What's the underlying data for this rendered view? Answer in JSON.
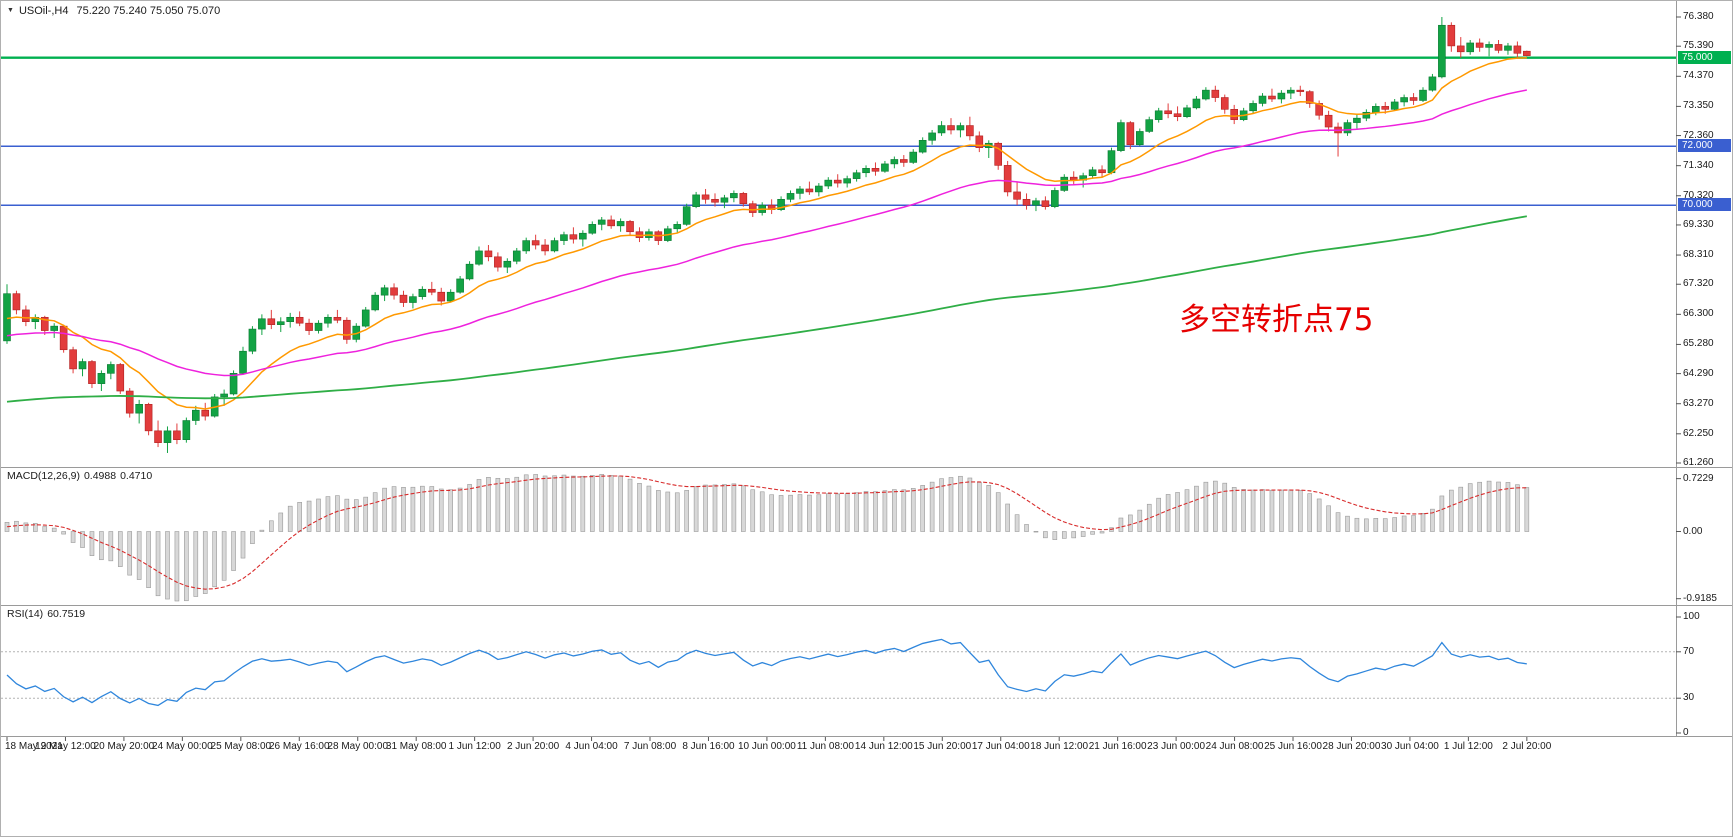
{
  "window": {
    "symbol": "USOil-,H4",
    "ohlc": "75.220 75.240 75.050 75.070"
  },
  "annotation": {
    "text": "多空转折点75",
    "color": "#e60000"
  },
  "colors": {
    "up": "#12a344",
    "up_stroke": "#0b7a32",
    "down": "#e23c3c",
    "down_stroke": "#b02020",
    "ma_fast": "#ff9900",
    "ma_mid": "#ee22dd",
    "ma_slow": "#2fae46",
    "level_green": "#00b050",
    "level_blue": "#3a5fd0",
    "macd_hist_fill": "#d8d8d8",
    "macd_hist_stroke": "#9a9a9a",
    "macd_signal": "#d82c2c",
    "rsi_line": "#2f86dc",
    "rsi_level": "#b4b4b4",
    "separator": "#9a9a9a",
    "axis_text": "#1a1a1a"
  },
  "price_axis": {
    "ticks": [
      "76.380",
      "75.390",
      "74.370",
      "73.350",
      "72.360",
      "71.340",
      "70.320",
      "69.330",
      "68.310",
      "67.320",
      "66.300",
      "65.280",
      "64.290",
      "63.270",
      "62.250",
      "61.260"
    ],
    "level_labels": [
      {
        "text": "75.000",
        "value": 75.0,
        "bg": "#00b050"
      },
      {
        "text": "72.000",
        "value": 72.0,
        "bg": "#3a5fd0"
      },
      {
        "text": "70.000",
        "value": 70.0,
        "bg": "#3a5fd0"
      }
    ]
  },
  "levels": [
    {
      "value": 75.0,
      "color": "#00b050",
      "width": 2.4
    },
    {
      "value": 72.0,
      "color": "#3a5fd0",
      "width": 1.5
    },
    {
      "value": 70.0,
      "color": "#3a5fd0",
      "width": 1.5
    }
  ],
  "time_axis": {
    "labels": [
      "18 May 2021",
      "19 May 12:00",
      "20 May 20:00",
      "24 May 00:00",
      "25 May 08:00",
      "26 May 16:00",
      "28 May 00:00",
      "31 May 08:00",
      "1 Jun 12:00",
      "2 Jun 20:00",
      "4 Jun 04:00",
      "7 Jun 08:00",
      "8 Jun 16:00",
      "10 Jun 00:00",
      "11 Jun 08:00",
      "14 Jun 12:00",
      "15 Jun 20:00",
      "17 Jun 04:00",
      "18 Jun 12:00",
      "21 Jun 16:00",
      "23 Jun 00:00",
      "24 Jun 08:00",
      "25 Jun 16:00",
      "28 Jun 20:00",
      "30 Jun 04:00",
      "1 Jul 12:00",
      "2 Jul 20:00"
    ]
  },
  "macd": {
    "label": "MACD(12,26,9)",
    "value_main": "0.4988",
    "value_signal": "0.4710",
    "axis": [
      "0.7229",
      "0.00",
      "-0.9185"
    ]
  },
  "rsi": {
    "label": "RSI(14)",
    "value": "60.7519",
    "axis": [
      "100",
      "70",
      "30",
      "0"
    ],
    "levels": [
      70,
      30
    ]
  },
  "chart_data": {
    "type": "candlestick",
    "symbol": "USOil-",
    "timeframe": "H4",
    "title": "USOil-,H4 75.220 75.240 75.050 75.070",
    "current_bar": {
      "open": 75.22,
      "high": 75.24,
      "low": 75.05,
      "close": 75.07
    },
    "price_axis_range": [
      61.26,
      76.38
    ],
    "horizontal_levels": [
      75.0,
      72.0,
      70.0
    ],
    "indicators": [
      {
        "name": "MACD",
        "params": [
          12,
          26,
          9
        ],
        "current_main": 0.4988,
        "current_signal": 0.471,
        "axis_range": [
          -0.9185,
          0.7229
        ]
      },
      {
        "name": "RSI",
        "params": [
          14
        ],
        "current": 60.7519,
        "axis_range": [
          0,
          100
        ],
        "levels": [
          30,
          70
        ]
      }
    ],
    "candles": [
      [
        65.4,
        67.32,
        65.3,
        67.0
      ],
      [
        67.0,
        67.1,
        66.3,
        66.45
      ],
      [
        66.45,
        66.6,
        65.9,
        66.05
      ],
      [
        66.05,
        66.3,
        65.8,
        66.2
      ],
      [
        66.2,
        66.25,
        65.6,
        65.75
      ],
      [
        65.75,
        66.0,
        65.5,
        65.9
      ],
      [
        65.9,
        65.95,
        65.0,
        65.1
      ],
      [
        65.1,
        65.2,
        64.3,
        64.45
      ],
      [
        64.45,
        64.8,
        64.2,
        64.7
      ],
      [
        64.7,
        64.75,
        63.8,
        63.95
      ],
      [
        63.95,
        64.4,
        63.7,
        64.3
      ],
      [
        64.3,
        64.7,
        64.1,
        64.6
      ],
      [
        64.6,
        64.65,
        63.6,
        63.7
      ],
      [
        63.7,
        63.8,
        62.8,
        62.95
      ],
      [
        62.95,
        63.4,
        62.6,
        63.25
      ],
      [
        63.25,
        63.3,
        62.2,
        62.35
      ],
      [
        62.35,
        62.7,
        61.8,
        61.95
      ],
      [
        61.95,
        62.5,
        61.6,
        62.35
      ],
      [
        62.35,
        62.6,
        61.9,
        62.05
      ],
      [
        62.05,
        62.8,
        61.95,
        62.7
      ],
      [
        62.7,
        63.2,
        62.55,
        63.05
      ],
      [
        63.05,
        63.3,
        62.7,
        62.85
      ],
      [
        62.85,
        63.6,
        62.8,
        63.5
      ],
      [
        63.5,
        63.75,
        63.2,
        63.6
      ],
      [
        63.6,
        64.4,
        63.55,
        64.3
      ],
      [
        64.3,
        65.2,
        64.25,
        65.05
      ],
      [
        65.05,
        65.9,
        64.95,
        65.8
      ],
      [
        65.8,
        66.3,
        65.6,
        66.15
      ],
      [
        66.15,
        66.45,
        65.8,
        65.95
      ],
      [
        65.95,
        66.2,
        65.7,
        66.05
      ],
      [
        66.05,
        66.35,
        65.85,
        66.2
      ],
      [
        66.2,
        66.4,
        65.9,
        66.0
      ],
      [
        66.0,
        66.15,
        65.6,
        65.75
      ],
      [
        65.75,
        66.1,
        65.65,
        66.0
      ],
      [
        66.0,
        66.3,
        65.85,
        66.2
      ],
      [
        66.2,
        66.45,
        66.0,
        66.1
      ],
      [
        66.1,
        66.2,
        65.3,
        65.45
      ],
      [
        65.45,
        66.0,
        65.35,
        65.9
      ],
      [
        65.9,
        66.55,
        65.85,
        66.45
      ],
      [
        66.45,
        67.05,
        66.4,
        66.95
      ],
      [
        66.95,
        67.3,
        66.75,
        67.2
      ],
      [
        67.2,
        67.35,
        66.8,
        66.95
      ],
      [
        66.95,
        67.1,
        66.55,
        66.7
      ],
      [
        66.7,
        67.0,
        66.5,
        66.9
      ],
      [
        66.9,
        67.25,
        66.8,
        67.15
      ],
      [
        67.15,
        67.4,
        66.95,
        67.05
      ],
      [
        67.05,
        67.2,
        66.6,
        66.75
      ],
      [
        66.75,
        67.15,
        66.7,
        67.05
      ],
      [
        67.05,
        67.6,
        67.0,
        67.5
      ],
      [
        67.5,
        68.1,
        67.45,
        68.0
      ],
      [
        68.0,
        68.6,
        67.95,
        68.45
      ],
      [
        68.45,
        68.65,
        68.1,
        68.25
      ],
      [
        68.25,
        68.4,
        67.75,
        67.9
      ],
      [
        67.9,
        68.2,
        67.7,
        68.1
      ],
      [
        68.1,
        68.55,
        68.0,
        68.45
      ],
      [
        68.45,
        68.9,
        68.35,
        68.8
      ],
      [
        68.8,
        69.0,
        68.5,
        68.65
      ],
      [
        68.65,
        68.85,
        68.3,
        68.45
      ],
      [
        68.45,
        68.9,
        68.4,
        68.8
      ],
      [
        68.8,
        69.1,
        68.65,
        69.0
      ],
      [
        69.0,
        69.25,
        68.7,
        68.85
      ],
      [
        68.85,
        69.15,
        68.6,
        69.05
      ],
      [
        69.05,
        69.45,
        69.0,
        69.35
      ],
      [
        69.35,
        69.6,
        69.15,
        69.5
      ],
      [
        69.5,
        69.65,
        69.2,
        69.3
      ],
      [
        69.3,
        69.55,
        69.1,
        69.45
      ],
      [
        69.45,
        69.5,
        69.0,
        69.1
      ],
      [
        69.1,
        69.25,
        68.75,
        68.9
      ],
      [
        68.9,
        69.2,
        68.8,
        69.1
      ],
      [
        69.1,
        69.15,
        68.65,
        68.8
      ],
      [
        68.8,
        69.3,
        68.75,
        69.2
      ],
      [
        69.2,
        69.45,
        69.05,
        69.35
      ],
      [
        69.35,
        70.05,
        69.3,
        69.95
      ],
      [
        69.95,
        70.45,
        69.9,
        70.35
      ],
      [
        70.35,
        70.55,
        70.05,
        70.2
      ],
      [
        70.2,
        70.4,
        69.95,
        70.1
      ],
      [
        70.1,
        70.35,
        69.9,
        70.25
      ],
      [
        70.25,
        70.5,
        70.1,
        70.4
      ],
      [
        70.4,
        70.45,
        69.95,
        70.05
      ],
      [
        70.05,
        70.15,
        69.6,
        69.75
      ],
      [
        69.75,
        70.1,
        69.65,
        70.0
      ],
      [
        70.0,
        70.2,
        69.7,
        69.85
      ],
      [
        69.85,
        70.3,
        69.8,
        70.2
      ],
      [
        70.2,
        70.5,
        70.1,
        70.4
      ],
      [
        70.4,
        70.65,
        70.2,
        70.55
      ],
      [
        70.55,
        70.8,
        70.35,
        70.45
      ],
      [
        70.45,
        70.75,
        70.3,
        70.65
      ],
      [
        70.65,
        70.95,
        70.55,
        70.85
      ],
      [
        70.85,
        71.05,
        70.6,
        70.75
      ],
      [
        70.75,
        71.0,
        70.6,
        70.9
      ],
      [
        70.9,
        71.2,
        70.8,
        71.1
      ],
      [
        71.1,
        71.35,
        70.95,
        71.25
      ],
      [
        71.25,
        71.45,
        71.0,
        71.15
      ],
      [
        71.15,
        71.5,
        71.1,
        71.4
      ],
      [
        71.4,
        71.65,
        71.25,
        71.55
      ],
      [
        71.55,
        71.7,
        71.3,
        71.45
      ],
      [
        71.45,
        71.9,
        71.4,
        71.8
      ],
      [
        71.8,
        72.3,
        71.75,
        72.2
      ],
      [
        72.2,
        72.55,
        72.05,
        72.45
      ],
      [
        72.45,
        72.85,
        72.35,
        72.7
      ],
      [
        72.7,
        72.95,
        72.4,
        72.55
      ],
      [
        72.55,
        72.8,
        72.3,
        72.7
      ],
      [
        72.7,
        73.0,
        72.2,
        72.35
      ],
      [
        72.35,
        72.5,
        71.8,
        71.95
      ],
      [
        71.95,
        72.2,
        71.6,
        72.1
      ],
      [
        72.1,
        72.15,
        71.2,
        71.35
      ],
      [
        71.35,
        71.5,
        70.3,
        70.45
      ],
      [
        70.45,
        70.8,
        70.0,
        70.2
      ],
      [
        70.2,
        70.4,
        69.85,
        70.0
      ],
      [
        70.0,
        70.25,
        69.8,
        70.15
      ],
      [
        70.15,
        70.3,
        69.85,
        69.95
      ],
      [
        69.95,
        70.6,
        69.9,
        70.5
      ],
      [
        70.5,
        71.05,
        70.45,
        70.95
      ],
      [
        70.95,
        71.15,
        70.7,
        70.85
      ],
      [
        70.85,
        71.1,
        70.6,
        71.0
      ],
      [
        71.0,
        71.3,
        70.9,
        71.2
      ],
      [
        71.2,
        71.35,
        70.95,
        71.1
      ],
      [
        71.1,
        71.95,
        71.05,
        71.85
      ],
      [
        71.85,
        72.9,
        71.8,
        72.8
      ],
      [
        72.8,
        72.85,
        71.9,
        72.05
      ],
      [
        72.05,
        72.6,
        72.0,
        72.5
      ],
      [
        72.5,
        73.0,
        72.45,
        72.9
      ],
      [
        72.9,
        73.3,
        72.8,
        73.2
      ],
      [
        73.2,
        73.45,
        72.95,
        73.1
      ],
      [
        73.1,
        73.35,
        72.85,
        73.0
      ],
      [
        73.0,
        73.4,
        72.95,
        73.3
      ],
      [
        73.3,
        73.7,
        73.25,
        73.6
      ],
      [
        73.6,
        74.0,
        73.55,
        73.9
      ],
      [
        73.9,
        74.05,
        73.5,
        73.65
      ],
      [
        73.65,
        73.75,
        73.1,
        73.25
      ],
      [
        73.25,
        73.4,
        72.75,
        72.9
      ],
      [
        72.9,
        73.3,
        72.85,
        73.2
      ],
      [
        73.2,
        73.55,
        73.1,
        73.45
      ],
      [
        73.45,
        73.8,
        73.35,
        73.7
      ],
      [
        73.7,
        73.95,
        73.5,
        73.6
      ],
      [
        73.6,
        73.9,
        73.45,
        73.8
      ],
      [
        73.8,
        74.0,
        73.6,
        73.9
      ],
      [
        73.9,
        74.05,
        73.7,
        73.85
      ],
      [
        73.85,
        73.9,
        73.3,
        73.45
      ],
      [
        73.45,
        73.55,
        72.9,
        73.05
      ],
      [
        73.05,
        73.2,
        72.5,
        72.65
      ],
      [
        72.65,
        72.8,
        71.65,
        72.45
      ],
      [
        72.45,
        72.9,
        72.35,
        72.8
      ],
      [
        72.8,
        73.1,
        72.6,
        72.95
      ],
      [
        72.95,
        73.25,
        72.85,
        73.15
      ],
      [
        73.15,
        73.45,
        73.05,
        73.35
      ],
      [
        73.35,
        73.5,
        73.1,
        73.25
      ],
      [
        73.25,
        73.6,
        73.2,
        73.5
      ],
      [
        73.5,
        73.75,
        73.35,
        73.65
      ],
      [
        73.65,
        73.8,
        73.4,
        73.55
      ],
      [
        73.55,
        74.0,
        73.5,
        73.9
      ],
      [
        73.9,
        74.45,
        73.85,
        74.35
      ],
      [
        74.35,
        76.38,
        74.3,
        76.1
      ],
      [
        76.1,
        76.2,
        75.2,
        75.4
      ],
      [
        75.4,
        75.7,
        75.0,
        75.2
      ],
      [
        75.2,
        75.6,
        75.1,
        75.5
      ],
      [
        75.5,
        75.65,
        75.2,
        75.35
      ],
      [
        75.35,
        75.55,
        75.05,
        75.45
      ],
      [
        75.45,
        75.6,
        75.15,
        75.25
      ],
      [
        75.25,
        75.5,
        75.1,
        75.4
      ],
      [
        75.4,
        75.55,
        75.0,
        75.15
      ],
      [
        75.22,
        75.24,
        75.05,
        75.07
      ]
    ]
  }
}
